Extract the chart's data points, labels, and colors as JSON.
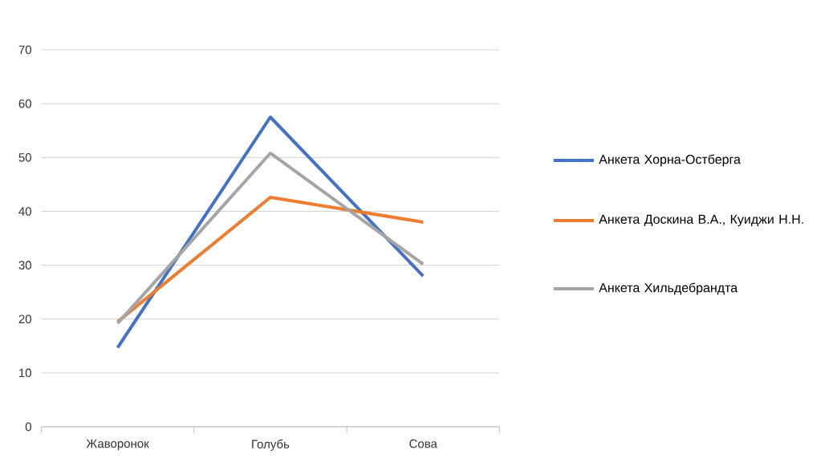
{
  "chart_data": {
    "type": "line",
    "categories": [
      "Жаворонок",
      "Голубь",
      "Сова"
    ],
    "series": [
      {
        "name": "Анкета Хорна-Остберга",
        "color": "#4472c4",
        "values": [
          14.7,
          57.5,
          28.0
        ]
      },
      {
        "name": "Анкета Доскина В.А., Куиджи Н.Н.",
        "color": "#ed7d31",
        "values": [
          19.5,
          42.6,
          38.0
        ]
      },
      {
        "name": "Анкета Хильдебрандта",
        "color": "#a5a5a5",
        "values": [
          19.2,
          50.8,
          30.2
        ]
      }
    ],
    "ylim": [
      0,
      70
    ],
    "yticks": [
      0,
      10,
      20,
      30,
      40,
      50,
      60,
      70
    ],
    "grid": "y",
    "legend": "right",
    "marker": "none",
    "line_style": "solid"
  }
}
